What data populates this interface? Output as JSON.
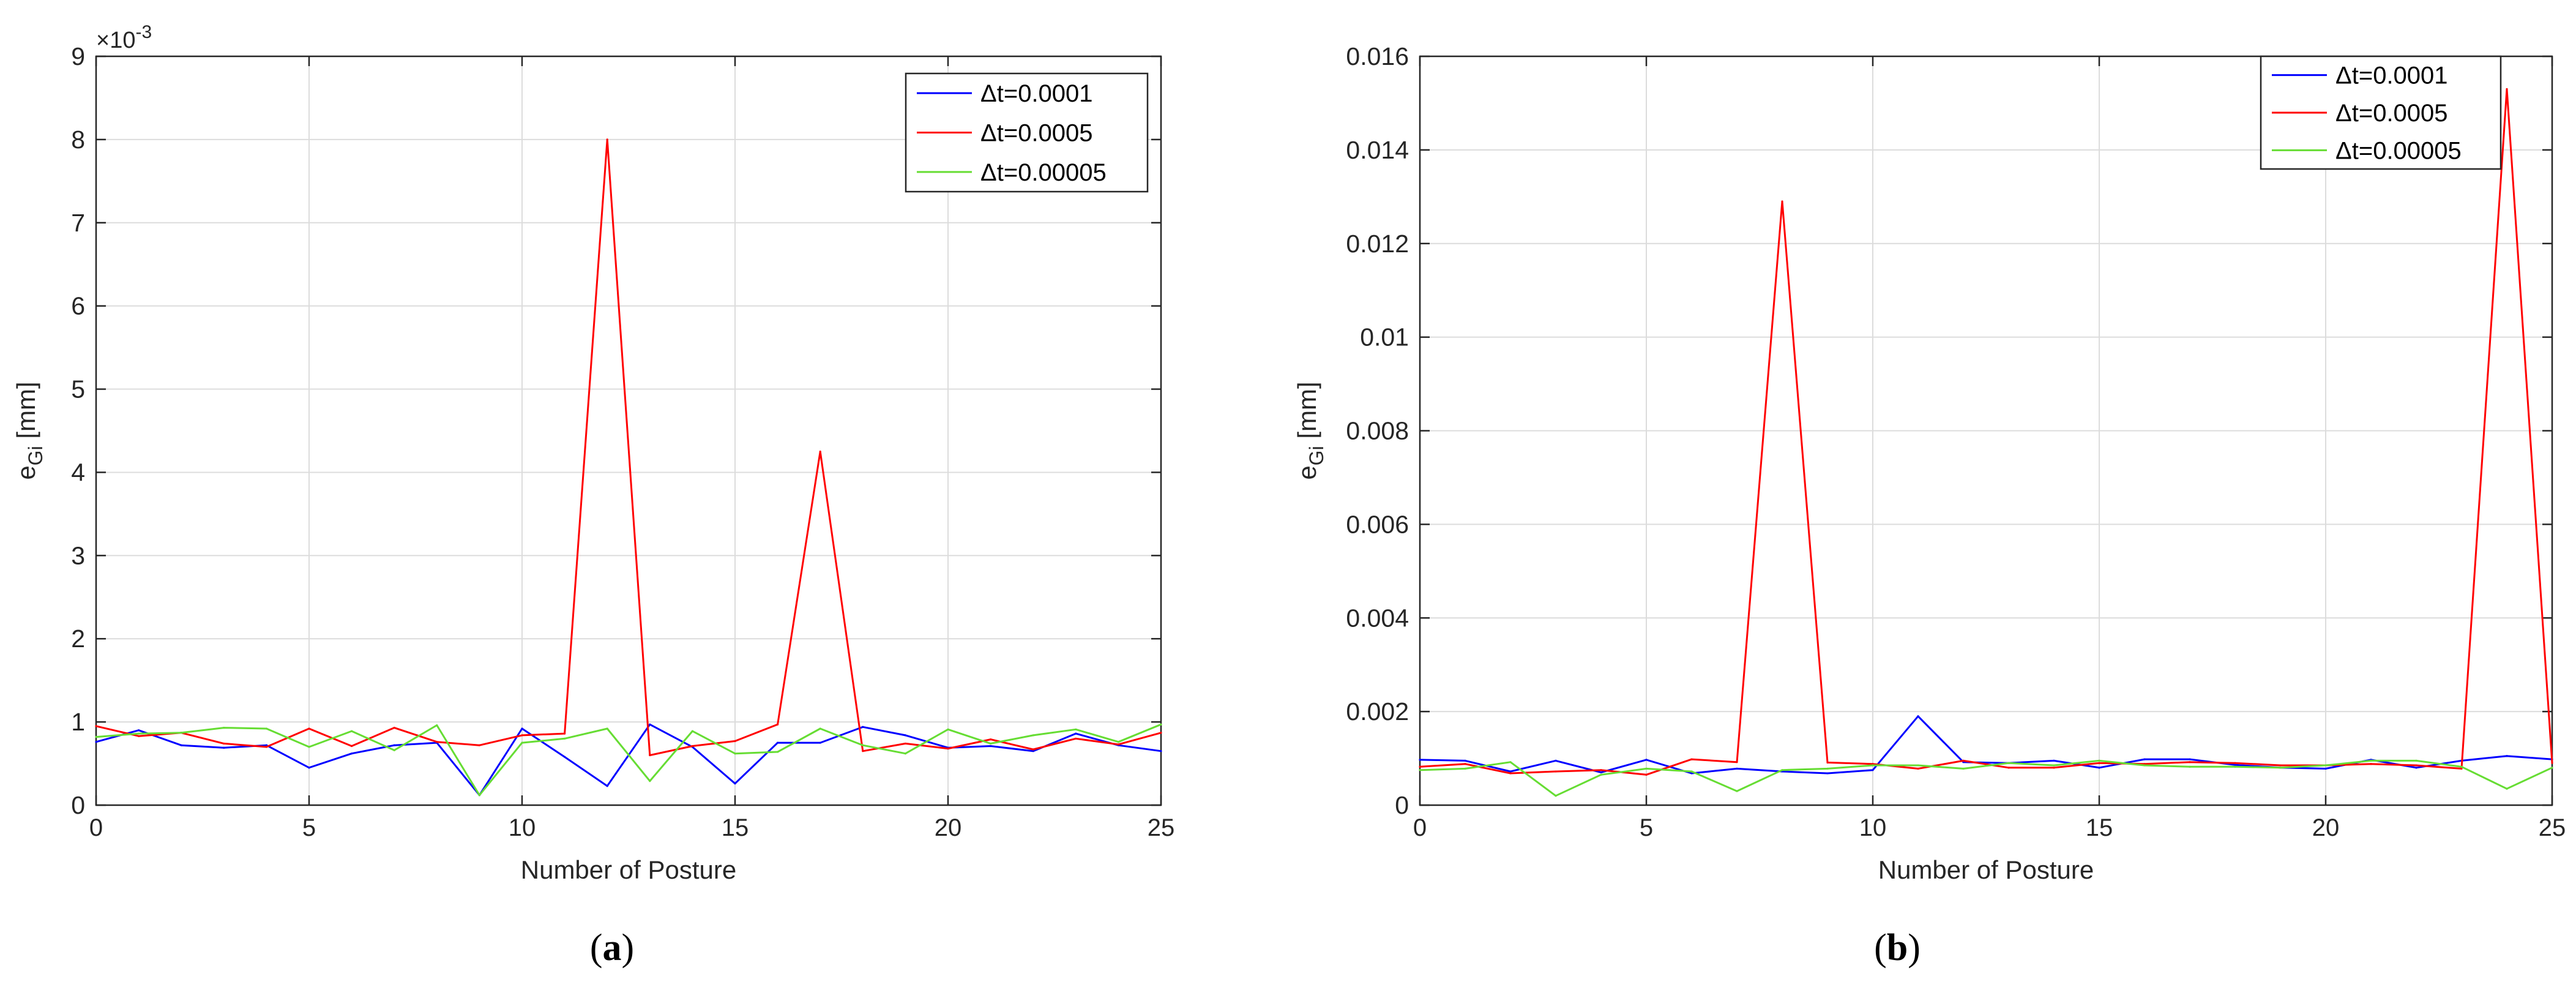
{
  "chart_data": [
    {
      "type": "line",
      "panel_label": "a",
      "title": "",
      "xlabel": "Number of Posture",
      "ylabel": "e",
      "ylabel_sub": "Gi",
      "ylabel_unit": " [mm]",
      "xlim": [
        0,
        25
      ],
      "ylim": [
        0,
        0.009
      ],
      "grid": true,
      "legend_position": "top-right",
      "y_exponent": "×10",
      "y_exponent_power": "-3",
      "x_ticks": [
        0,
        5,
        10,
        15,
        20,
        25
      ],
      "x_tick_labels": [
        "0",
        "5",
        "10",
        "15",
        "20",
        "25"
      ],
      "y_ticks": [
        0,
        0.001,
        0.002,
        0.003,
        0.004,
        0.005,
        0.006,
        0.007,
        0.008,
        0.009
      ],
      "y_tick_labels": [
        "0",
        "1",
        "2",
        "3",
        "4",
        "5",
        "6",
        "7",
        "8",
        "9"
      ],
      "x": [
        0,
        1,
        2,
        3,
        4,
        5,
        6,
        7,
        8,
        9,
        10,
        11,
        12,
        13,
        14,
        15,
        16,
        17,
        18,
        19,
        20,
        21,
        22,
        23,
        24,
        25
      ],
      "series": [
        {
          "name": "Δt=0.0001",
          "color": "#0000ff",
          "values": [
            0.00076,
            0.0009,
            0.00072,
            0.00069,
            0.00072,
            0.00045,
            0.00062,
            0.00072,
            0.00075,
            0.00012,
            0.00092,
            0.00058,
            0.00023,
            0.00097,
            0.0007,
            0.00026,
            0.00075,
            0.00075,
            0.00094,
            0.00084,
            0.00069,
            0.00071,
            0.00065,
            0.00086,
            0.00072,
            0.00065
          ]
        },
        {
          "name": "Δt=0.0005",
          "color": "#ff0000",
          "values": [
            0.00095,
            0.00083,
            0.00087,
            0.00074,
            0.0007,
            0.00092,
            0.00071,
            0.00093,
            0.00076,
            0.00072,
            0.00084,
            0.00086,
            0.008,
            0.0006,
            0.00071,
            0.00077,
            0.00097,
            0.00425,
            0.00065,
            0.00074,
            0.00068,
            0.00079,
            0.00067,
            0.0008,
            0.00073,
            0.00087
          ]
        },
        {
          "name": "Δt=0.00005",
          "color": "#66dd33",
          "values": [
            0.00082,
            0.00086,
            0.00087,
            0.00093,
            0.00092,
            0.0007,
            0.00089,
            0.00066,
            0.00096,
            0.00012,
            0.00075,
            0.0008,
            0.00092,
            0.00029,
            0.00089,
            0.00062,
            0.00064,
            0.00092,
            0.00072,
            0.00062,
            0.00091,
            0.00074,
            0.00084,
            0.00091,
            0.00076,
            0.00097
          ]
        }
      ]
    },
    {
      "type": "line",
      "panel_label": "b",
      "title": "",
      "xlabel": "Number of Posture",
      "ylabel": "e",
      "ylabel_sub": "Gi",
      "ylabel_unit": " [mm]",
      "xlim": [
        0,
        25
      ],
      "ylim": [
        0,
        0.016
      ],
      "grid": true,
      "legend_position": "top-right",
      "x_ticks": [
        0,
        5,
        10,
        15,
        20,
        25
      ],
      "x_tick_labels": [
        "0",
        "5",
        "10",
        "15",
        "20",
        "25"
      ],
      "y_ticks": [
        0,
        0.002,
        0.004,
        0.006,
        0.008,
        0.01,
        0.012,
        0.014,
        0.016
      ],
      "y_tick_labels": [
        "0",
        "0.002",
        "0.004",
        "0.006",
        "0.008",
        "0.01",
        "0.012",
        "0.014",
        "0.016"
      ],
      "x": [
        0,
        1,
        2,
        3,
        4,
        5,
        6,
        7,
        8,
        9,
        10,
        11,
        12,
        13,
        14,
        15,
        16,
        17,
        18,
        19,
        20,
        21,
        22,
        23,
        24,
        25
      ],
      "series": [
        {
          "name": "Δt=0.0001",
          "color": "#0000ff",
          "values": [
            0.00097,
            0.00095,
            0.00072,
            0.00095,
            0.0007,
            0.00097,
            0.00068,
            0.00078,
            0.00072,
            0.00068,
            0.00075,
            0.0019,
            0.00092,
            0.0009,
            0.00095,
            0.0008,
            0.00098,
            0.00098,
            0.00086,
            0.0008,
            0.00078,
            0.00097,
            0.0008,
            0.00095,
            0.00105,
            0.00098
          ]
        },
        {
          "name": "Δt=0.0005",
          "color": "#ff0000",
          "values": [
            0.00082,
            0.00088,
            0.00068,
            0.00072,
            0.00075,
            0.00065,
            0.00098,
            0.00092,
            0.0129,
            0.00091,
            0.00088,
            0.00078,
            0.00095,
            0.0008,
            0.0008,
            0.0009,
            0.00088,
            0.00092,
            0.0009,
            0.00085,
            0.00085,
            0.00088,
            0.00085,
            0.00078,
            0.0153,
            0.0009
          ]
        },
        {
          "name": "Δt=0.00005",
          "color": "#66dd33",
          "values": [
            0.00075,
            0.00078,
            0.00092,
            0.0002,
            0.00065,
            0.00078,
            0.00072,
            0.0003,
            0.00075,
            0.00078,
            0.00085,
            0.00085,
            0.00078,
            0.0009,
            0.00085,
            0.00095,
            0.00085,
            0.00082,
            0.00082,
            0.0008,
            0.00085,
            0.00095,
            0.00095,
            0.00082,
            0.00035,
            0.0008
          ]
        }
      ]
    }
  ]
}
